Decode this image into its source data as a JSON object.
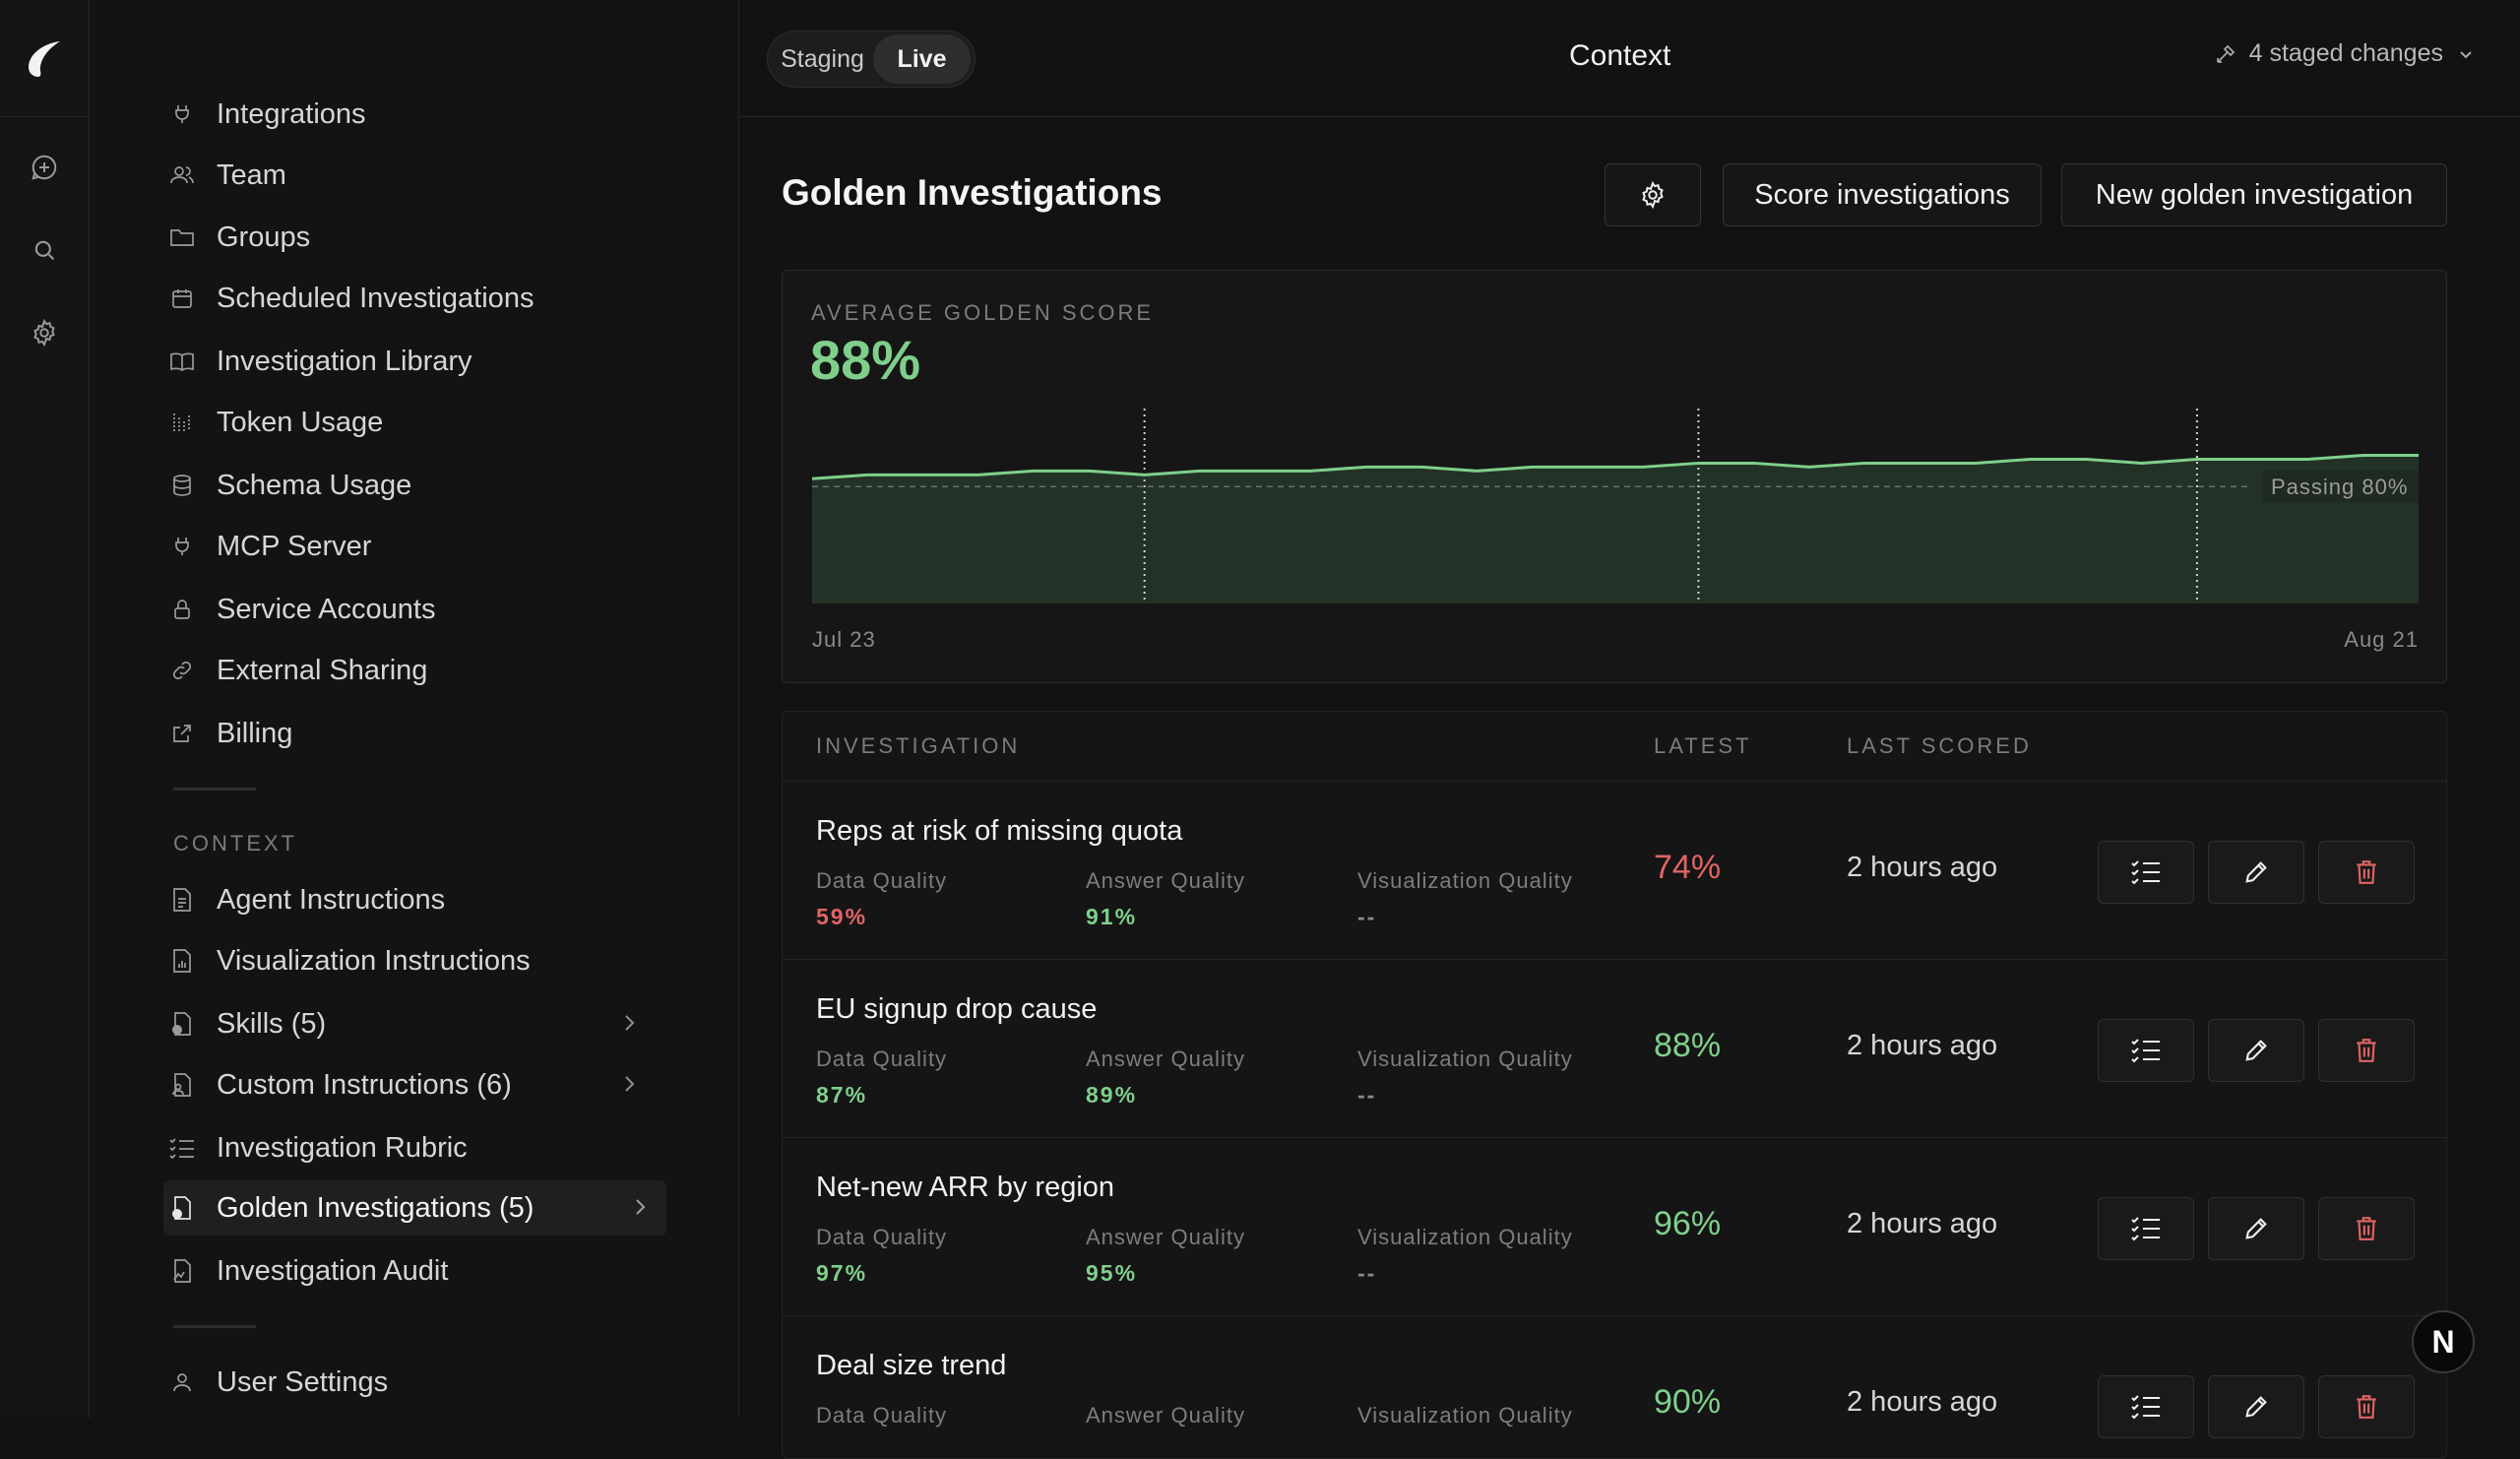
{
  "colors": {
    "accent_good": "#7fcf8b",
    "accent_bad": "#e06464",
    "background": "#121212"
  },
  "rail": {
    "icons": [
      "logo-icon",
      "new-chat-icon",
      "search-icon",
      "gear-icon"
    ]
  },
  "sidebar": {
    "items": [
      {
        "label": "Integrations",
        "icon": "plug-icon"
      },
      {
        "label": "Team",
        "icon": "users-icon"
      },
      {
        "label": "Groups",
        "icon": "folder-icon"
      },
      {
        "label": "Scheduled Investigations",
        "icon": "calendar-icon"
      },
      {
        "label": "Investigation Library",
        "icon": "book-icon"
      },
      {
        "label": "Token Usage",
        "icon": "bars-icon"
      },
      {
        "label": "Schema Usage",
        "icon": "database-icon"
      },
      {
        "label": "MCP Server",
        "icon": "plug-icon"
      },
      {
        "label": "Service Accounts",
        "icon": "lock-icon"
      },
      {
        "label": "External Sharing",
        "icon": "link-icon"
      },
      {
        "label": "Billing",
        "icon": "external-link-icon"
      }
    ],
    "context_heading": "CONTEXT",
    "context_items": [
      {
        "label": "Agent Instructions",
        "icon": "document-icon"
      },
      {
        "label": "Visualization Instructions",
        "icon": "chart-doc-icon"
      },
      {
        "label": "Skills (5)",
        "icon": "skills-doc-icon"
      },
      {
        "label": "Custom Instructions (6)",
        "icon": "user-doc-icon"
      },
      {
        "label": "Investigation Rubric",
        "icon": "checklist-icon"
      },
      {
        "label": "Golden Investigations (5)",
        "icon": "golden-doc-icon"
      },
      {
        "label": "Investigation Audit",
        "icon": "audit-doc-icon"
      }
    ],
    "user_settings": "User Settings"
  },
  "topbar": {
    "mode_options": [
      "Staging",
      "Live"
    ],
    "selected_mode": "Live",
    "title": "Context",
    "staged_changes": "4 staged changes"
  },
  "page": {
    "title": "Golden Investigations",
    "score_button": "Score investigations",
    "new_button": "New golden investigation"
  },
  "summary": {
    "label": "AVERAGE GOLDEN SCORE",
    "value": "88%"
  },
  "chart_data": {
    "type": "area",
    "x_start_label": "Jul 23",
    "x_end_label": "Aug 21",
    "threshold": {
      "value": 80,
      "label": "Passing 80%"
    },
    "ylim": [
      50,
      100
    ],
    "x": [
      0,
      1,
      2,
      3,
      4,
      5,
      6,
      7,
      8,
      9,
      10,
      11,
      12,
      13,
      14,
      15,
      16,
      17,
      18,
      19,
      20,
      21,
      22,
      23,
      24,
      25,
      26,
      27,
      28,
      29
    ],
    "series": [
      {
        "values": [
          82,
          83,
          83,
          83,
          84,
          84,
          83,
          84,
          84,
          84,
          85,
          85,
          84,
          85,
          85,
          85,
          86,
          86,
          85,
          86,
          86,
          86,
          87,
          87,
          86,
          87,
          87,
          87,
          88,
          88
        ]
      }
    ],
    "event_markers_x": [
      6,
      16,
      25
    ],
    "grid": false
  },
  "table": {
    "headers": [
      "INVESTIGATION",
      "LATEST",
      "LAST SCORED"
    ],
    "sub_labels": [
      "Data Quality",
      "Answer Quality",
      "Visualization Quality"
    ],
    "rows": [
      {
        "title": "Reps at risk of missing quota",
        "data_quality": "59%",
        "answer_quality": "91%",
        "viz_quality": "--",
        "latest": "74%",
        "last_scored": "2 hours ago"
      },
      {
        "title": "EU signup drop cause",
        "data_quality": "87%",
        "answer_quality": "89%",
        "viz_quality": "--",
        "latest": "88%",
        "last_scored": "2 hours ago"
      },
      {
        "title": "Net-new ARR by region",
        "data_quality": "97%",
        "answer_quality": "95%",
        "viz_quality": "--",
        "latest": "96%",
        "last_scored": "2 hours ago"
      },
      {
        "title": "Deal size trend",
        "data_quality": "",
        "answer_quality": "",
        "viz_quality": "",
        "latest": "90%",
        "last_scored": "2 hours ago"
      }
    ]
  },
  "user": {
    "avatar_initial": "N"
  }
}
